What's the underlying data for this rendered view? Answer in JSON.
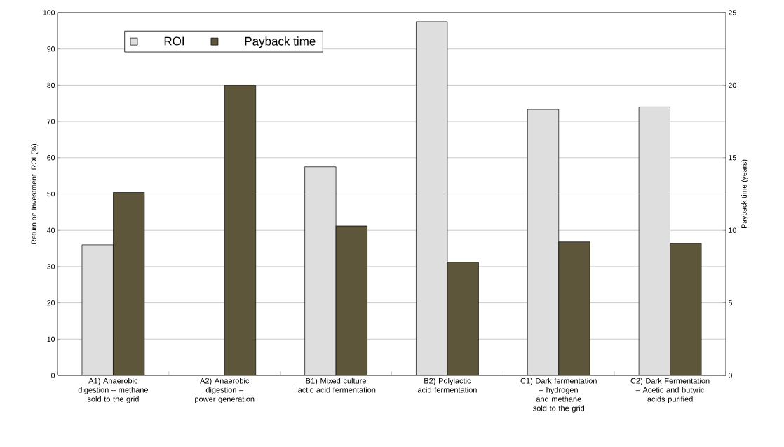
{
  "chart_data": {
    "type": "bar",
    "categories": [
      "A1) Anaerobic digestion – methane sold to the grid",
      "A2) Anaerobic digestion – power generation",
      "B1) Mixed culture lactic acid fermentation",
      "B2) Polylactic acid fermentation",
      "C1) Dark fermentation – hydrogen and methane sold to the grid",
      "C2) Dark Fermentation – Acetic and butyric acids purified"
    ],
    "series": [
      {
        "name": "ROI",
        "color": "#dedede",
        "values": [
          36,
          null,
          57.5,
          97.5,
          73.3,
          74
        ]
      },
      {
        "name": "Payback time",
        "color": "#5e563a",
        "axis": "y2",
        "values": [
          12.6,
          20,
          10.3,
          7.8,
          9.2,
          9.1
        ]
      }
    ],
    "ylabel": "Return on Investment, ROI (%)",
    "y2label": "Payback time (years)",
    "ylim": [
      0,
      100
    ],
    "yticks": [
      0,
      10,
      20,
      30,
      40,
      50,
      60,
      70,
      80,
      90,
      100
    ],
    "y2lim": [
      0,
      25
    ],
    "y2ticks": [
      0,
      5,
      10,
      15,
      20,
      25
    ],
    "grid": "y",
    "legend": "top left"
  }
}
